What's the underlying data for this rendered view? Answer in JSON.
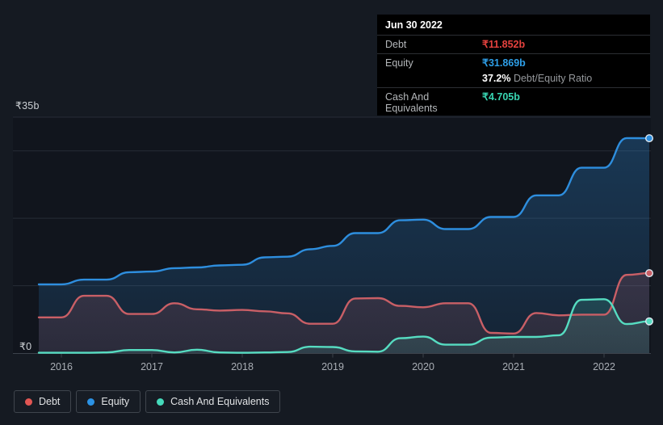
{
  "tooltip": {
    "date": "Jun 30 2022",
    "debt_label": "Debt",
    "debt_value": "₹11.852b",
    "equity_label": "Equity",
    "equity_value": "₹31.869b",
    "ratio_value": "37.2%",
    "ratio_label": "Debt/Equity Ratio",
    "cash_label": "Cash And Equivalents",
    "cash_value": "₹4.705b"
  },
  "axis": {
    "y_max_label": "₹35b",
    "y_zero_label": "₹0",
    "years": [
      "2016",
      "2017",
      "2018",
      "2019",
      "2020",
      "2021",
      "2022"
    ]
  },
  "legend": {
    "items": [
      {
        "label": "Debt",
        "color": "#e25653"
      },
      {
        "label": "Equity",
        "color": "#2b92e4"
      },
      {
        "label": "Cash And Equivalents",
        "color": "#45dabb"
      }
    ]
  },
  "colors": {
    "background": "#151a22",
    "plot_background": "#11151d",
    "gridline": "#272c36",
    "axis_line": "#3c424b",
    "axis_text": "#a9aeb5",
    "debt_line": "#c95f66",
    "equity_line": "#2e8ede",
    "cash_line": "#56dcc1",
    "debt_value_text": "#e5423e",
    "equity_value_text": "#2e9fe8",
    "cash_value_text": "#38d5b2"
  },
  "chart_data": {
    "type": "area",
    "title": "Debt, Equity and Cash history (₹ billions)",
    "x_unit": "decimal_year",
    "ylim": [
      0,
      35
    ],
    "y_gridlines": [
      35,
      30,
      20,
      10
    ],
    "x_ticks": [
      2016,
      2017,
      2018,
      2019,
      2020,
      2021,
      2022
    ],
    "x": [
      2015.75,
      2016.0,
      2016.25,
      2016.5,
      2016.75,
      2017.0,
      2017.25,
      2017.5,
      2017.75,
      2018.0,
      2018.25,
      2018.5,
      2018.75,
      2019.0,
      2019.25,
      2019.5,
      2019.75,
      2020.0,
      2020.25,
      2020.5,
      2020.75,
      2021.0,
      2021.25,
      2021.5,
      2021.75,
      2022.0,
      2022.25,
      2022.5
    ],
    "series": [
      {
        "name": "Debt",
        "color": "#c95f66",
        "values": [
          5.3,
          5.3,
          8.5,
          8.5,
          5.8,
          5.8,
          7.4,
          6.5,
          6.3,
          6.4,
          6.2,
          5.9,
          4.35,
          4.35,
          8.1,
          8.15,
          7.0,
          6.8,
          7.4,
          7.4,
          3.0,
          2.9,
          5.95,
          5.6,
          5.7,
          5.7,
          11.6,
          11.852
        ]
      },
      {
        "name": "Equity",
        "color": "#2e8ede",
        "values": [
          10.2,
          10.2,
          10.9,
          10.9,
          12.0,
          12.1,
          12.6,
          12.7,
          13.0,
          13.1,
          14.2,
          14.3,
          15.4,
          15.9,
          17.8,
          17.8,
          19.7,
          19.8,
          18.4,
          18.4,
          20.2,
          20.2,
          23.4,
          23.4,
          27.5,
          27.5,
          31.9,
          31.869
        ]
      },
      {
        "name": "Cash And Equivalents",
        "color": "#56dcc1",
        "values": [
          0.05,
          0.05,
          0.05,
          0.1,
          0.45,
          0.45,
          0.1,
          0.5,
          0.1,
          0.05,
          0.1,
          0.15,
          0.95,
          0.9,
          0.25,
          0.2,
          2.2,
          2.45,
          1.25,
          1.25,
          2.3,
          2.4,
          2.4,
          2.65,
          7.9,
          8.0,
          4.3,
          4.705
        ]
      }
    ],
    "legend_position": "bottom-left",
    "grid": true
  }
}
